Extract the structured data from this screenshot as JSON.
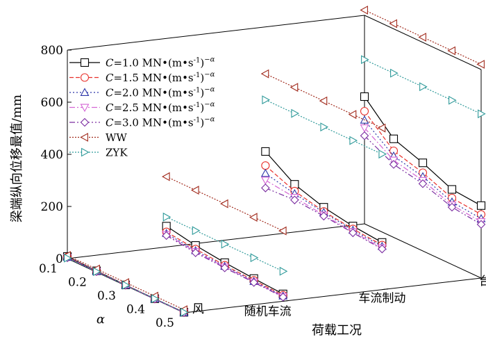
{
  "chart_data": {
    "type": "line",
    "projection": "3d",
    "ylabel": "梁端纵向位移最值/mm",
    "xlabel": "荷载工况",
    "alpha_label": "α",
    "zlim": [
      0,
      800
    ],
    "z_ticks": [
      "0",
      "200",
      "400",
      "600",
      "800"
    ],
    "load_cases": [
      "风",
      "随机车流",
      "车流制动",
      "台风"
    ],
    "alpha_values": [
      0.1,
      0.2,
      0.3,
      0.4,
      0.5
    ],
    "alpha_ticks": [
      "0.1",
      "0.2",
      "0.3",
      "0.4",
      "0.5"
    ],
    "series": [
      {
        "name": "C=1.0 MN•(m•s⁻¹)⁻α",
        "legend": {
          "c": "C",
          "eq": "=1.0 MN•(m•s",
          "sup1": "-1",
          "close": ")",
          "sup2": "−α"
        },
        "color": "#000000",
        "dash": "",
        "marker": "square",
        "values": [
          [
            8,
            5,
            3,
            2,
            2
          ],
          [
            80,
            58,
            44,
            35,
            28
          ],
          [
            322,
            248,
            212,
            192,
            181
          ],
          [
            488,
            378,
            338,
            288,
            278
          ]
        ]
      },
      {
        "name": "C=1.5 MN•(m•s⁻¹)⁻α",
        "legend": {
          "c": "C",
          "eq": "=1.5 MN•(m•s",
          "sup1": "-1",
          "close": ")",
          "sup2": "−α"
        },
        "color": "#e8302a",
        "dash": "6,3",
        "marker": "circle",
        "values": [
          [
            6,
            4,
            3,
            2,
            2
          ],
          [
            58,
            44,
            34,
            28,
            23
          ],
          [
            268,
            222,
            196,
            181,
            171
          ],
          [
            432,
            332,
            300,
            255,
            244
          ]
        ]
      },
      {
        "name": "C=2.0 MN•(m•s⁻¹)⁻α",
        "legend": {
          "c": "C",
          "eq": "=2.0 MN•(m•s",
          "sup1": "-1",
          "close": ")",
          "sup2": "−α"
        },
        "color": "#2b35a8",
        "dash": "2,3",
        "marker": "triangle-up",
        "values": [
          [
            5,
            3,
            2,
            2,
            1
          ],
          [
            52,
            38,
            30,
            24,
            20
          ],
          [
            238,
            212,
            192,
            176,
            166
          ],
          [
            398,
            312,
            285,
            240,
            228
          ]
        ]
      },
      {
        "name": "C=2.5 MN•(m•s⁻¹)⁻α",
        "legend": {
          "c": "C",
          "eq": "=2.5 MN•(m•s",
          "sup1": "-1",
          "close": ")",
          "sup2": "−α"
        },
        "color": "#d465d4",
        "dash": "8,3,2,3",
        "marker": "triangle-down",
        "values": [
          [
            4,
            3,
            2,
            1,
            1
          ],
          [
            48,
            34,
            27,
            22,
            18
          ],
          [
            212,
            198,
            182,
            170,
            160
          ],
          [
            368,
            296,
            270,
            228,
            216
          ]
        ]
      },
      {
        "name": "C=3.0 MN•(m•s⁻¹)⁻α",
        "legend": {
          "c": "C",
          "eq": "=3.0 MN•(m•s",
          "sup1": "-1",
          "close": ")",
          "sup2": "−α"
        },
        "color": "#7a2ca0",
        "dash": "8,3,2,3,2,3",
        "marker": "diamond",
        "values": [
          [
            3,
            2,
            2,
            1,
            1
          ],
          [
            44,
            30,
            24,
            20,
            16
          ],
          [
            182,
            188,
            178,
            166,
            156
          ],
          [
            338,
            280,
            258,
            220,
            206
          ]
        ]
      },
      {
        "name": "WW",
        "legend": {
          "c": "",
          "eq": "WW",
          "sup1": "",
          "close": "",
          "sup2": ""
        },
        "color": "#a12a1c",
        "dash": "2,2",
        "marker": "triangle-left",
        "values": [
          [
            12,
            12,
            12,
            12,
            12
          ],
          [
            270,
            270,
            270,
            270,
            270
          ],
          [
            620,
            620,
            620,
            620,
            620
          ],
          [
            820,
            820,
            820,
            820,
            820
          ]
        ]
      },
      {
        "name": "ZYK",
        "legend": {
          "c": "",
          "eq": "ZYK",
          "sup1": "",
          "close": "",
          "sup2": ""
        },
        "color": "#2f9a9a",
        "dash": "2,2",
        "marker": "triangle-right",
        "values": [
          [
            2,
            2,
            2,
            2,
            2
          ],
          [
            115,
            115,
            115,
            115,
            115
          ],
          [
            520,
            520,
            520,
            520,
            520
          ],
          [
            630,
            630,
            630,
            630,
            630
          ]
        ]
      }
    ]
  }
}
